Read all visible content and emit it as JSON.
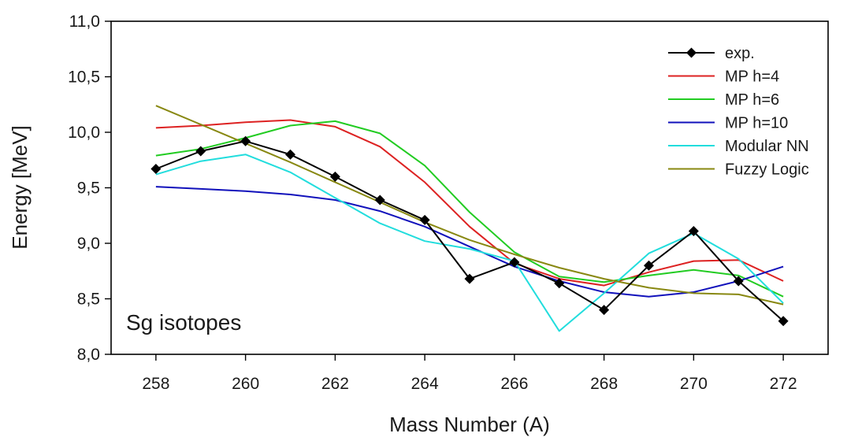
{
  "chart_data": {
    "type": "line",
    "title": "",
    "annotation": "Sg isotopes",
    "xlabel": "Mass Number (A)",
    "ylabel": "Energy [MeV]",
    "xlim": [
      257,
      273
    ],
    "ylim": [
      8.0,
      11.0
    ],
    "x_ticks": [
      258,
      260,
      262,
      264,
      266,
      268,
      270,
      272
    ],
    "x_tick_labels": [
      "258",
      "260",
      "262",
      "264",
      "266",
      "268",
      "270",
      "272"
    ],
    "y_ticks": [
      8.0,
      8.5,
      9.0,
      9.5,
      10.0,
      10.5,
      11.0
    ],
    "y_tick_labels": [
      "8,0",
      "8,5",
      "9,0",
      "9,5",
      "10,0",
      "10,5",
      "11,0"
    ],
    "grid": false,
    "legend_position": "top-right",
    "x": [
      258,
      259,
      260,
      261,
      262,
      263,
      264,
      265,
      266,
      267,
      268,
      269,
      270,
      271,
      272
    ],
    "series": [
      {
        "name": "exp.",
        "color": "#000000",
        "marker": "diamond",
        "values": [
          9.67,
          9.83,
          9.92,
          9.8,
          9.6,
          9.39,
          9.21,
          8.68,
          8.83,
          8.64,
          8.4,
          8.8,
          9.11,
          8.66,
          8.3
        ]
      },
      {
        "name": "MP h=4",
        "color": "#dd2222",
        "marker": "none",
        "values": [
          10.04,
          10.06,
          10.09,
          10.11,
          10.05,
          9.87,
          9.55,
          9.15,
          8.82,
          8.68,
          8.62,
          8.74,
          8.84,
          8.85,
          8.66
        ]
      },
      {
        "name": "MP h=6",
        "color": "#22cc22",
        "marker": "none",
        "values": [
          9.79,
          9.85,
          9.95,
          10.06,
          10.1,
          9.99,
          9.7,
          9.28,
          8.92,
          8.7,
          8.65,
          8.71,
          8.76,
          8.71,
          8.52
        ]
      },
      {
        "name": "MP h=10",
        "color": "#1111bb",
        "marker": "none",
        "values": [
          9.51,
          9.49,
          9.47,
          9.44,
          9.39,
          9.29,
          9.15,
          8.97,
          8.79,
          8.66,
          8.56,
          8.52,
          8.56,
          8.66,
          8.79
        ]
      },
      {
        "name": "Modular NN",
        "color": "#22dddd",
        "marker": "none",
        "values": [
          9.62,
          9.74,
          9.8,
          9.64,
          9.41,
          9.18,
          9.02,
          8.95,
          8.84,
          8.21,
          8.55,
          8.91,
          9.09,
          8.86,
          8.46
        ]
      },
      {
        "name": "Fuzzy Logic",
        "color": "#888811",
        "marker": "none",
        "values": [
          10.24,
          10.07,
          9.9,
          9.73,
          9.55,
          9.37,
          9.19,
          9.03,
          8.9,
          8.78,
          8.68,
          8.6,
          8.55,
          8.54,
          8.45
        ]
      }
    ]
  }
}
